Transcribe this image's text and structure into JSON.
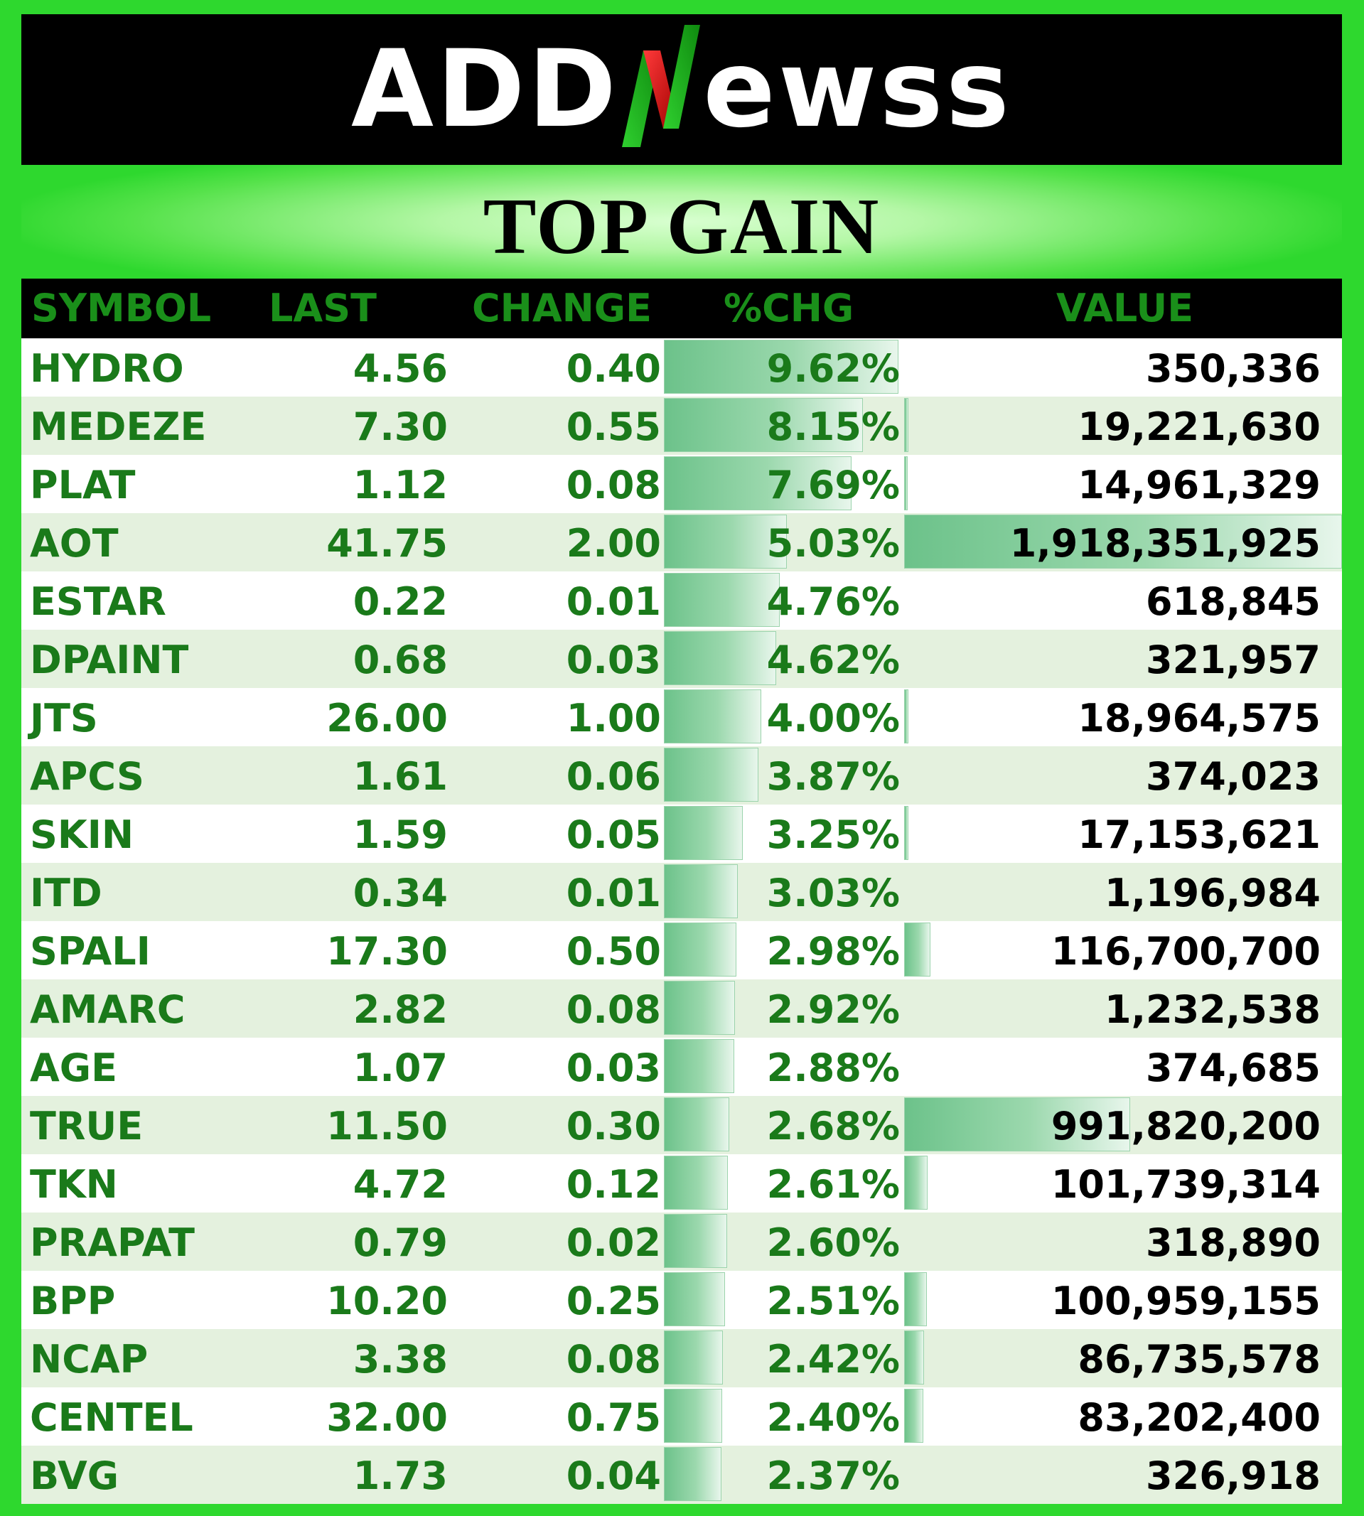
{
  "header": {
    "logo_left": "ADD",
    "logo_right": "ewss",
    "title": "TOP GAIN"
  },
  "columns": {
    "symbol": "SYMBOL",
    "last": "LAST",
    "change": "CHANGE",
    "pct": "%CHG",
    "value": "VALUE"
  },
  "colors": {
    "frame": "#2ed82e",
    "header_text": "#1a8f1a",
    "row_text": "#1a7a1a",
    "value_text": "#000000",
    "databar": "#6cc28a"
  },
  "rows": [
    {
      "symbol": "HYDRO",
      "last": "4.56",
      "change": "0.40",
      "pct": "9.62%",
      "value": "350,336",
      "pct_num": 9.62,
      "value_num": 350336
    },
    {
      "symbol": "MEDEZE",
      "last": "7.30",
      "change": "0.55",
      "pct": "8.15%",
      "value": "19,221,630",
      "pct_num": 8.15,
      "value_num": 19221630
    },
    {
      "symbol": "PLAT",
      "last": "1.12",
      "change": "0.08",
      "pct": "7.69%",
      "value": "14,961,329",
      "pct_num": 7.69,
      "value_num": 14961329
    },
    {
      "symbol": "AOT",
      "last": "41.75",
      "change": "2.00",
      "pct": "5.03%",
      "value": "1,918,351,925",
      "pct_num": 5.03,
      "value_num": 1918351925
    },
    {
      "symbol": "ESTAR",
      "last": "0.22",
      "change": "0.01",
      "pct": "4.76%",
      "value": "618,845",
      "pct_num": 4.76,
      "value_num": 618845
    },
    {
      "symbol": "DPAINT",
      "last": "0.68",
      "change": "0.03",
      "pct": "4.62%",
      "value": "321,957",
      "pct_num": 4.62,
      "value_num": 321957
    },
    {
      "symbol": "JTS",
      "last": "26.00",
      "change": "1.00",
      "pct": "4.00%",
      "value": "18,964,575",
      "pct_num": 4.0,
      "value_num": 18964575
    },
    {
      "symbol": "APCS",
      "last": "1.61",
      "change": "0.06",
      "pct": "3.87%",
      "value": "374,023",
      "pct_num": 3.87,
      "value_num": 374023
    },
    {
      "symbol": "SKIN",
      "last": "1.59",
      "change": "0.05",
      "pct": "3.25%",
      "value": "17,153,621",
      "pct_num": 3.25,
      "value_num": 17153621
    },
    {
      "symbol": "ITD",
      "last": "0.34",
      "change": "0.01",
      "pct": "3.03%",
      "value": "1,196,984",
      "pct_num": 3.03,
      "value_num": 1196984
    },
    {
      "symbol": "SPALI",
      "last": "17.30",
      "change": "0.50",
      "pct": "2.98%",
      "value": "116,700,700",
      "pct_num": 2.98,
      "value_num": 116700700
    },
    {
      "symbol": "AMARC",
      "last": "2.82",
      "change": "0.08",
      "pct": "2.92%",
      "value": "1,232,538",
      "pct_num": 2.92,
      "value_num": 1232538
    },
    {
      "symbol": "AGE",
      "last": "1.07",
      "change": "0.03",
      "pct": "2.88%",
      "value": "374,685",
      "pct_num": 2.88,
      "value_num": 374685
    },
    {
      "symbol": "TRUE",
      "last": "11.50",
      "change": "0.30",
      "pct": "2.68%",
      "value": "991,820,200",
      "pct_num": 2.68,
      "value_num": 991820200
    },
    {
      "symbol": "TKN",
      "last": "4.72",
      "change": "0.12",
      "pct": "2.61%",
      "value": "101,739,314",
      "pct_num": 2.61,
      "value_num": 101739314
    },
    {
      "symbol": "PRAPAT",
      "last": "0.79",
      "change": "0.02",
      "pct": "2.60%",
      "value": "318,890",
      "pct_num": 2.6,
      "value_num": 318890
    },
    {
      "symbol": "BPP",
      "last": "10.20",
      "change": "0.25",
      "pct": "2.51%",
      "value": "100,959,155",
      "pct_num": 2.51,
      "value_num": 100959155
    },
    {
      "symbol": "NCAP",
      "last": "3.38",
      "change": "0.08",
      "pct": "2.42%",
      "value": "86,735,578",
      "pct_num": 2.42,
      "value_num": 86735578
    },
    {
      "symbol": "CENTEL",
      "last": "32.00",
      "change": "0.75",
      "pct": "2.40%",
      "value": "83,202,400",
      "pct_num": 2.4,
      "value_num": 83202400
    },
    {
      "symbol": "BVG",
      "last": "1.73",
      "change": "0.04",
      "pct": "2.37%",
      "value": "326,918",
      "pct_num": 2.37,
      "value_num": 326918
    }
  ]
}
